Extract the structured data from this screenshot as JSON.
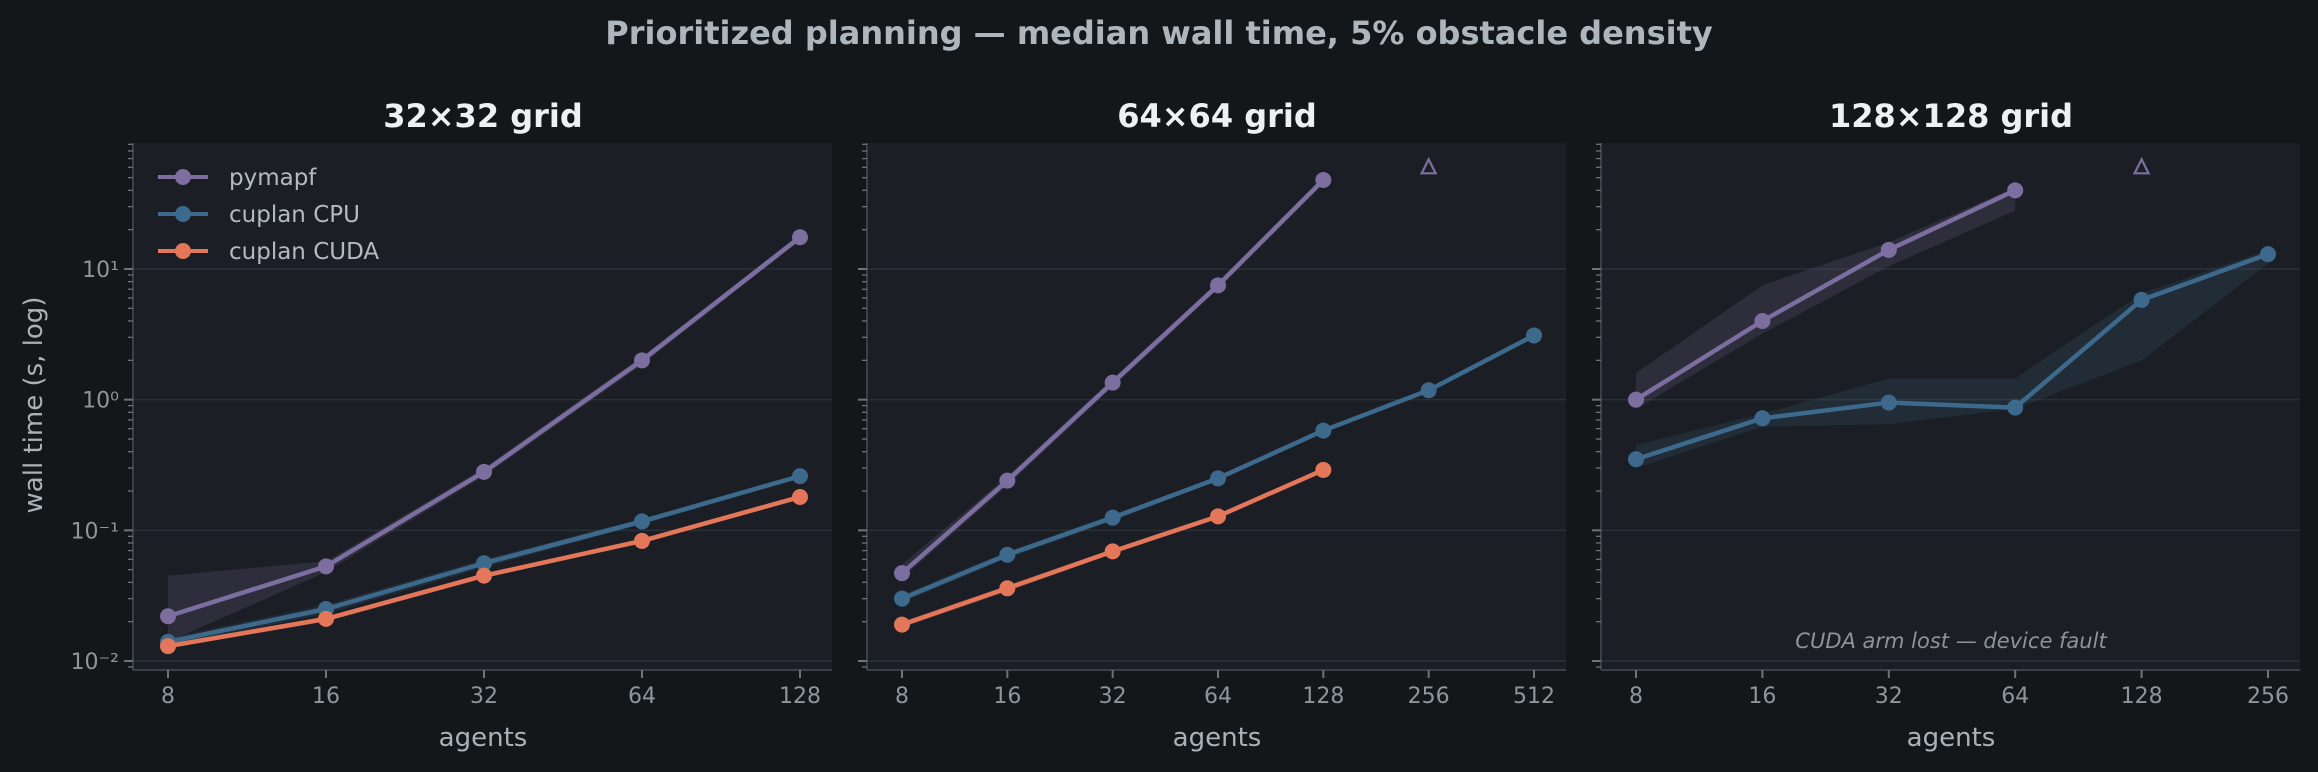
{
  "title": "Prioritized planning — median wall time, 5% obstacle density",
  "ylabel": "wall time (s, log)",
  "colors": {
    "background": "#13171a",
    "panel": "#1b1f25",
    "pymapf": "#7d6ea0",
    "cuplan CPU": "#3d6a8c",
    "cuplan CUDA": "#e4765a"
  },
  "legend_position": "upper-left of first panel",
  "chart_data": [
    {
      "type": "line",
      "title": "32×32 grid",
      "xlabel": "agents",
      "x": [
        8,
        16,
        32,
        64,
        128
      ],
      "x_ticks": [
        "8",
        "16",
        "32",
        "64",
        "128"
      ],
      "yscale": "log",
      "ylim": [
        0.009,
        90
      ],
      "y_ticks": [
        "10⁻²",
        "10⁻¹",
        "10⁰",
        "10¹"
      ],
      "grid": true,
      "series": [
        {
          "name": "pymapf",
          "x": [
            8,
            16,
            32,
            64,
            128
          ],
          "values": [
            0.022,
            0.053,
            0.28,
            2.0,
            17.5
          ],
          "band_low": [
            0.014,
            0.048,
            0.26,
            1.85,
            16.5
          ],
          "band_high": [
            0.045,
            0.058,
            0.3,
            2.15,
            18.5
          ]
        },
        {
          "name": "cuplan CPU",
          "x": [
            8,
            16,
            32,
            64,
            128
          ],
          "values": [
            0.014,
            0.025,
            0.056,
            0.117,
            0.26
          ],
          "band_low": [
            0.013,
            0.023,
            0.052,
            0.111,
            0.25
          ],
          "band_high": [
            0.015,
            0.027,
            0.06,
            0.123,
            0.27
          ]
        },
        {
          "name": "cuplan CUDA",
          "x": [
            8,
            16,
            32,
            64,
            128
          ],
          "values": [
            0.013,
            0.021,
            0.045,
            0.083,
            0.18
          ],
          "band_low": [
            0.0125,
            0.02,
            0.043,
            0.08,
            0.175
          ],
          "band_high": [
            0.0135,
            0.022,
            0.047,
            0.086,
            0.185
          ]
        }
      ]
    },
    {
      "type": "line",
      "title": "64×64 grid",
      "xlabel": "agents",
      "x": [
        8,
        16,
        32,
        64,
        128,
        256,
        512
      ],
      "x_ticks": [
        "8",
        "16",
        "32",
        "64",
        "128",
        "256",
        "512"
      ],
      "yscale": "log",
      "ylim": [
        0.009,
        90
      ],
      "grid": true,
      "series": [
        {
          "name": "pymapf",
          "x": [
            8,
            16,
            32,
            64,
            128
          ],
          "values": [
            0.047,
            0.24,
            1.35,
            7.5,
            48
          ],
          "band_low": [
            0.043,
            0.22,
            1.25,
            7.0,
            45
          ],
          "band_high": [
            0.055,
            0.26,
            1.45,
            8.0,
            51
          ]
        },
        {
          "name": "cuplan CPU",
          "x": [
            8,
            16,
            32,
            64,
            128,
            256,
            512
          ],
          "values": [
            0.03,
            0.065,
            0.125,
            0.25,
            0.58,
            1.18,
            3.1
          ],
          "band_low": [
            0.028,
            0.061,
            0.118,
            0.24,
            0.56,
            1.13,
            3.0
          ],
          "band_high": [
            0.032,
            0.069,
            0.132,
            0.26,
            0.6,
            1.23,
            3.2
          ]
        },
        {
          "name": "cuplan CUDA",
          "x": [
            8,
            16,
            32,
            64,
            128
          ],
          "values": [
            0.019,
            0.036,
            0.069,
            0.128,
            0.29
          ],
          "band_low": [
            0.018,
            0.034,
            0.066,
            0.123,
            0.28
          ],
          "band_high": [
            0.02,
            0.038,
            0.072,
            0.133,
            0.3
          ]
        }
      ],
      "markers": [
        {
          "series": "pymapf",
          "symbol": "△",
          "x": 256,
          "y": 60
        }
      ]
    },
    {
      "type": "line",
      "title": "128×128 grid",
      "xlabel": "agents",
      "x": [
        8,
        16,
        32,
        64,
        128,
        256
      ],
      "x_ticks": [
        "8",
        "16",
        "32",
        "64",
        "128",
        "256"
      ],
      "yscale": "log",
      "ylim": [
        0.009,
        90
      ],
      "grid": true,
      "series": [
        {
          "name": "pymapf",
          "x": [
            8,
            16,
            32,
            64
          ],
          "values": [
            1.0,
            4.0,
            14.0,
            40.0
          ],
          "band_low": [
            0.85,
            3.2,
            10.5,
            28
          ],
          "band_high": [
            1.6,
            7.5,
            16.0,
            42
          ]
        },
        {
          "name": "cuplan CPU",
          "x": [
            8,
            16,
            32,
            64,
            128,
            256
          ],
          "values": [
            0.35,
            0.72,
            0.95,
            0.87,
            5.8,
            13.0
          ],
          "band_low": [
            0.3,
            0.62,
            0.65,
            0.85,
            2.0,
            11.0
          ],
          "band_high": [
            0.45,
            0.78,
            1.45,
            1.45,
            6.5,
            14.0
          ]
        }
      ],
      "markers": [
        {
          "series": "pymapf",
          "symbol": "△",
          "x": 128,
          "y": 60
        }
      ],
      "annotation": "CUDA arm lost — device fault"
    }
  ]
}
